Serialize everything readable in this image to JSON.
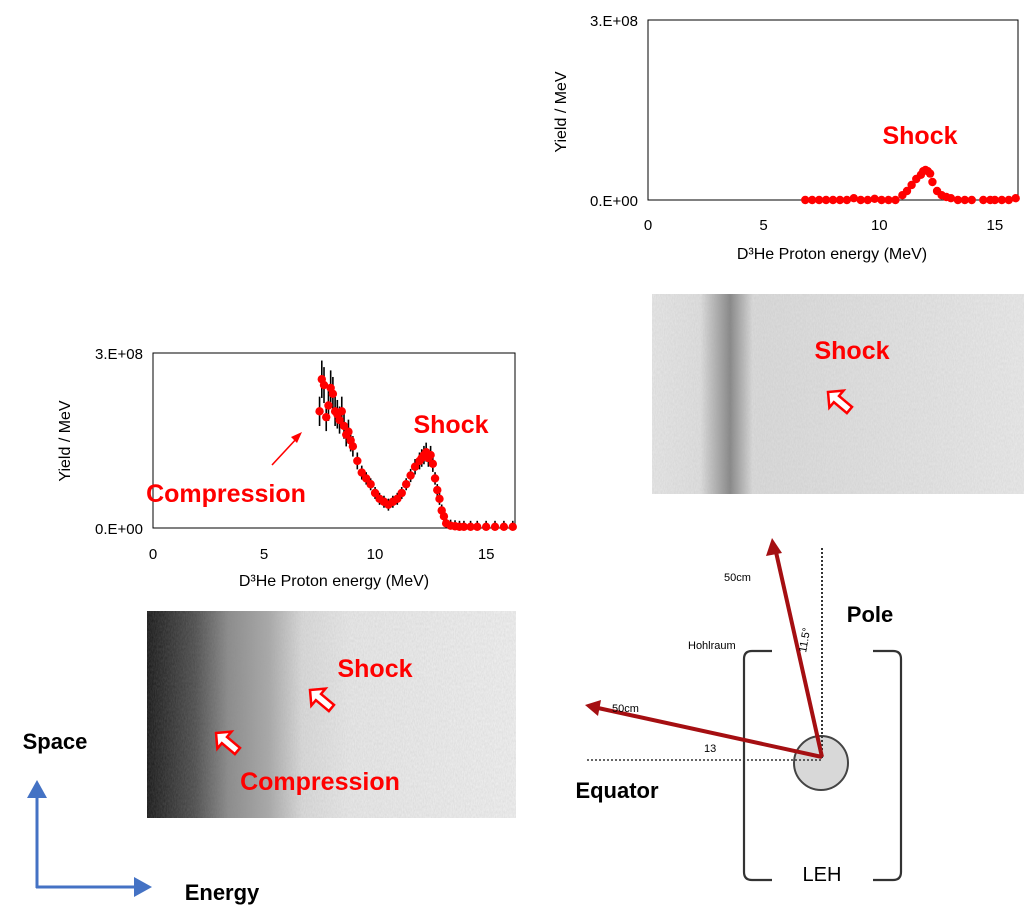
{
  "colors": {
    "series": "#ff0000",
    "label_red": "#ff0000",
    "vector_arrow": "#a50f12",
    "axis_arrow": "#4472c4",
    "error_bar": "#000000"
  },
  "chart_data": [
    {
      "id": "top",
      "type": "scatter",
      "title": "",
      "xlabel": "D³He Proton energy (MeV)",
      "ylabel": "Yield  / MeV",
      "xlim": [
        0,
        16
      ],
      "ylim": [
        0,
        300000000
      ],
      "x_ticks": [
        "0",
        "5",
        "10",
        "15"
      ],
      "y_ticks": [
        "0.E+00",
        "3.E+08"
      ],
      "grid": false,
      "annotations": [
        "Shock"
      ],
      "series": [
        {
          "x": [
            6.8,
            7.1,
            7.4,
            7.7,
            8.0,
            8.3,
            8.6,
            8.9,
            9.2,
            9.5,
            9.8,
            10.1,
            10.4,
            10.7,
            11.0,
            11.2,
            11.4,
            11.6,
            11.8,
            11.9,
            12.0,
            12.1,
            12.2,
            12.3,
            12.5,
            12.7,
            12.9,
            13.1,
            13.4,
            13.7,
            14.0,
            14.5,
            14.8,
            15.0,
            15.3,
            15.6,
            15.9
          ],
          "y": [
            0,
            0,
            0,
            0,
            0,
            0,
            0,
            3000000,
            0,
            0,
            2000000,
            0,
            0,
            0,
            8000000,
            15000000,
            25000000,
            35000000,
            42000000,
            48000000,
            50000000,
            48000000,
            44000000,
            30000000,
            15000000,
            8000000,
            5000000,
            3000000,
            0,
            0,
            0,
            0,
            0,
            0,
            0,
            0,
            3000000
          ]
        }
      ]
    },
    {
      "id": "left",
      "type": "scatter",
      "title": "",
      "xlabel": "D³He Proton energy (MeV)",
      "ylabel": "Yield  / MeV",
      "xlim": [
        0,
        16.3
      ],
      "ylim": [
        0,
        300000000
      ],
      "x_ticks": [
        "0",
        "5",
        "10",
        "15"
      ],
      "y_ticks": [
        "0.E+00",
        "3.E+08"
      ],
      "grid": false,
      "error_bars": true,
      "annotations": [
        "Shock",
        "Compression"
      ],
      "series": [
        {
          "x": [
            7.5,
            7.6,
            7.7,
            7.8,
            7.9,
            8.0,
            8.1,
            8.2,
            8.3,
            8.4,
            8.5,
            8.6,
            8.7,
            8.8,
            8.9,
            9.0,
            9.2,
            9.4,
            9.6,
            9.8,
            10.0,
            10.2,
            10.4,
            10.6,
            10.8,
            11.0,
            11.2,
            11.4,
            11.6,
            11.8,
            12.0,
            12.1,
            12.2,
            12.3,
            12.4,
            12.5,
            12.6,
            12.7,
            12.8,
            12.9,
            13.0,
            13.1,
            13.2,
            13.4,
            13.6,
            13.8,
            14.0,
            14.3,
            14.6,
            15.0,
            15.4,
            15.8,
            16.2
          ],
          "y": [
            200000000,
            255000000,
            245000000,
            190000000,
            210000000,
            240000000,
            230000000,
            200000000,
            195000000,
            185000000,
            200000000,
            175000000,
            160000000,
            165000000,
            150000000,
            140000000,
            115000000,
            95000000,
            85000000,
            75000000,
            60000000,
            50000000,
            45000000,
            40000000,
            45000000,
            50000000,
            60000000,
            75000000,
            90000000,
            105000000,
            115000000,
            120000000,
            125000000,
            130000000,
            120000000,
            125000000,
            110000000,
            85000000,
            65000000,
            50000000,
            30000000,
            20000000,
            8000000,
            4000000,
            3000000,
            2000000,
            2000000,
            2000000,
            2000000,
            2000000,
            2000000,
            2000000,
            2000000
          ]
        }
      ]
    }
  ],
  "image_labels": {
    "top_image_shock": "Shock",
    "left_image_shock": "Shock",
    "left_image_compression": "Compression"
  },
  "axes_legend": {
    "space": "Space",
    "energy": "Energy"
  },
  "diagram": {
    "pole": "Pole",
    "equator": "Equator",
    "leh": "LEH",
    "hohlraum": "Hohlraum",
    "dist_pole": "50cm",
    "dist_equator": "50cm",
    "angle_pole": "11.5°",
    "angle_equator": "13"
  }
}
